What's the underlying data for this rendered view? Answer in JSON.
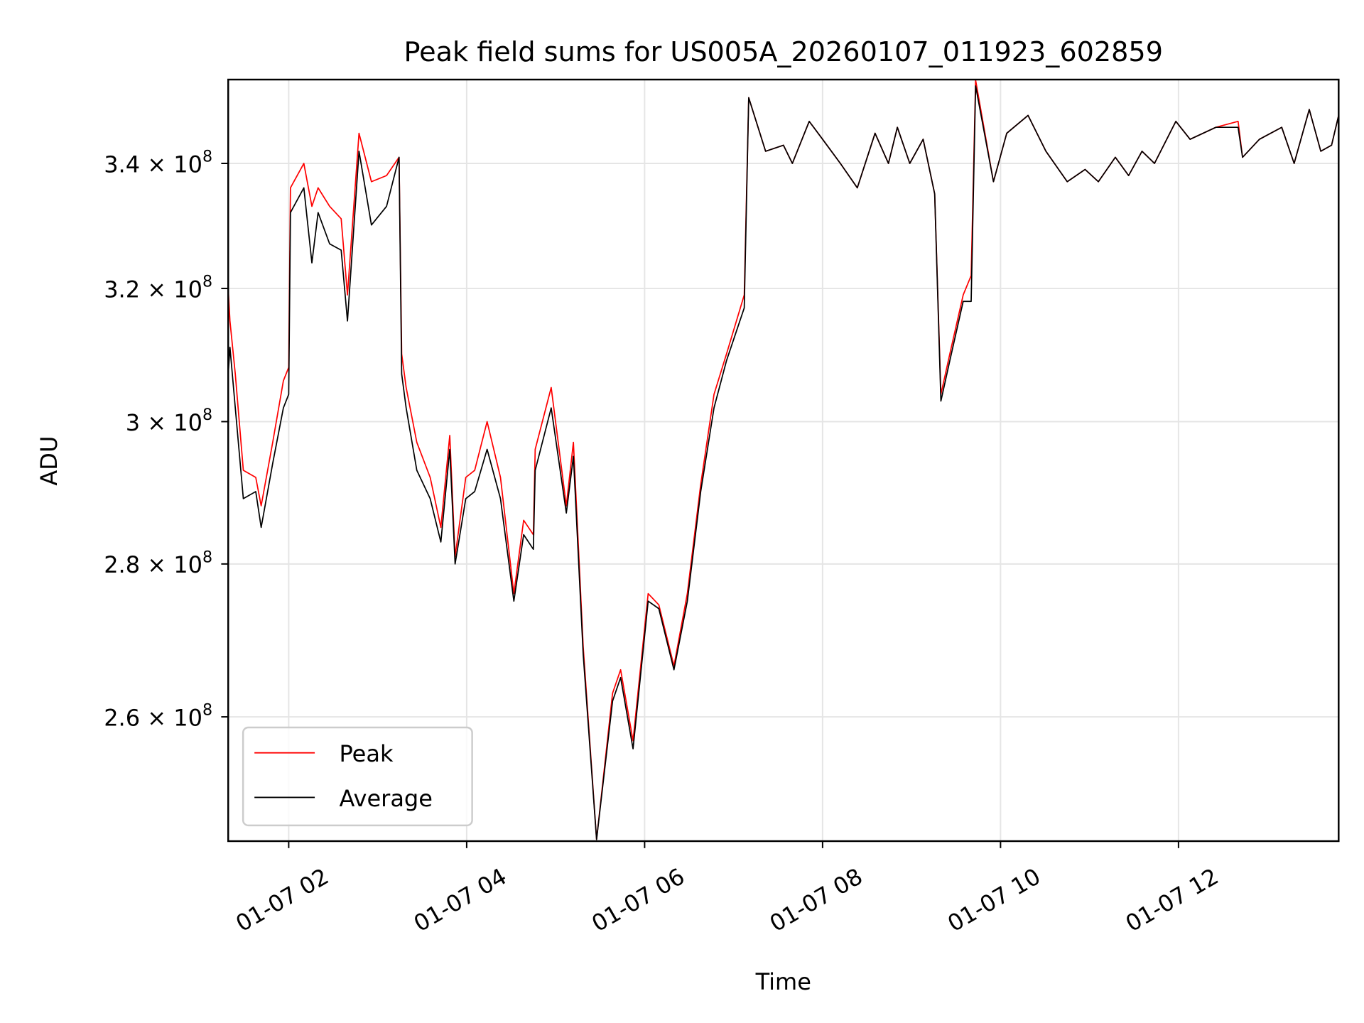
{
  "chart_data": {
    "type": "line",
    "title": "Peak field sums for US005A_20260107_011923_602859",
    "xlabel": "Time",
    "ylabel": "ADU",
    "yscale": "log",
    "x_units": "hours on 01-07",
    "xlim": [
      1.32,
      13.8
    ],
    "ylim": [
      244800000.0,
      354100000.0
    ],
    "grid": true,
    "legend_placement": "lower-left",
    "x_ticks": [
      {
        "value": 2,
        "label": "01-07 02"
      },
      {
        "value": 4,
        "label": "01-07 04"
      },
      {
        "value": 6,
        "label": "01-07 06"
      },
      {
        "value": 8,
        "label": "01-07 08"
      },
      {
        "value": 10,
        "label": "01-07 10"
      },
      {
        "value": 12,
        "label": "01-07 12"
      }
    ],
    "y_ticks": [
      {
        "value": 340000000.0,
        "mantissa": "3.4",
        "base": "10",
        "exp": "8"
      },
      {
        "value": 320000000.0,
        "mantissa": "3.2",
        "base": "10",
        "exp": "8"
      },
      {
        "value": 300000000.0,
        "mantissa": "3",
        "base": "10",
        "exp": "8"
      },
      {
        "value": 280000000.0,
        "mantissa": "2.8",
        "base": "10",
        "exp": "8"
      },
      {
        "value": 260000000.0,
        "mantissa": "2.6",
        "base": "10",
        "exp": "8"
      }
    ],
    "series": [
      {
        "name": "Peak",
        "color": "#ff0000",
        "points_e8": [
          [
            1.32,
            3.2
          ],
          [
            1.34,
            3.15
          ],
          [
            1.4,
            3.07
          ],
          [
            1.49,
            2.93
          ],
          [
            1.63,
            2.92
          ],
          [
            1.69,
            2.88
          ],
          [
            1.82,
            2.97
          ],
          [
            1.94,
            3.06
          ],
          [
            2.0,
            3.08
          ],
          [
            2.02,
            3.36
          ],
          [
            2.17,
            3.4
          ],
          [
            2.26,
            3.33
          ],
          [
            2.33,
            3.36
          ],
          [
            2.46,
            3.33
          ],
          [
            2.59,
            3.31
          ],
          [
            2.66,
            3.19
          ],
          [
            2.79,
            3.45
          ],
          [
            2.93,
            3.37
          ],
          [
            3.1,
            3.38
          ],
          [
            3.24,
            3.41
          ],
          [
            3.27,
            3.1
          ],
          [
            3.32,
            3.05
          ],
          [
            3.44,
            2.97
          ],
          [
            3.59,
            2.92
          ],
          [
            3.71,
            2.85
          ],
          [
            3.81,
            2.98
          ],
          [
            3.87,
            2.81
          ],
          [
            3.99,
            2.92
          ],
          [
            4.09,
            2.93
          ],
          [
            4.23,
            3.0
          ],
          [
            4.38,
            2.92
          ],
          [
            4.53,
            2.76
          ],
          [
            4.64,
            2.86
          ],
          [
            4.75,
            2.84
          ],
          [
            4.77,
            2.96
          ],
          [
            4.95,
            3.05
          ],
          [
            5.12,
            2.88
          ],
          [
            5.2,
            2.97
          ],
          [
            5.31,
            2.69
          ],
          [
            5.46,
            2.45
          ],
          [
            5.64,
            2.63
          ],
          [
            5.73,
            2.66
          ],
          [
            5.87,
            2.57
          ],
          [
            6.04,
            2.76
          ],
          [
            6.16,
            2.745
          ],
          [
            6.33,
            2.665
          ],
          [
            6.48,
            2.76
          ],
          [
            6.63,
            2.91
          ],
          [
            6.78,
            3.04
          ],
          [
            6.92,
            3.1
          ],
          [
            7.12,
            3.19
          ],
          [
            7.17,
            3.51
          ],
          [
            7.36,
            3.42
          ],
          [
            7.56,
            3.43
          ],
          [
            7.66,
            3.4
          ],
          [
            7.85,
            3.47
          ],
          [
            8.0,
            3.44
          ],
          [
            8.2,
            3.4
          ],
          [
            8.39,
            3.36
          ],
          [
            8.59,
            3.45
          ],
          [
            8.74,
            3.4
          ],
          [
            8.84,
            3.46
          ],
          [
            8.98,
            3.4
          ],
          [
            9.13,
            3.44
          ],
          [
            9.26,
            3.35
          ],
          [
            9.33,
            3.04
          ],
          [
            9.43,
            3.1
          ],
          [
            9.58,
            3.19
          ],
          [
            9.67,
            3.22
          ],
          [
            9.72,
            3.54
          ],
          [
            9.92,
            3.37
          ],
          [
            10.07,
            3.45
          ],
          [
            10.31,
            3.48
          ],
          [
            10.51,
            3.42
          ],
          [
            10.75,
            3.37
          ],
          [
            10.95,
            3.39
          ],
          [
            11.1,
            3.37
          ],
          [
            11.29,
            3.41
          ],
          [
            11.44,
            3.38
          ],
          [
            11.59,
            3.42
          ],
          [
            11.73,
            3.4
          ],
          [
            11.97,
            3.47
          ],
          [
            12.13,
            3.44
          ],
          [
            12.42,
            3.46
          ],
          [
            12.67,
            3.47
          ],
          [
            12.72,
            3.41
          ],
          [
            12.91,
            3.44
          ],
          [
            13.16,
            3.46
          ],
          [
            13.3,
            3.4
          ],
          [
            13.47,
            3.49
          ],
          [
            13.6,
            3.42
          ],
          [
            13.72,
            3.43
          ],
          [
            13.8,
            3.48
          ]
        ]
      },
      {
        "name": "Average",
        "color": "#000000",
        "points_e8": [
          [
            1.32,
            3.07
          ],
          [
            1.34,
            3.11
          ],
          [
            1.4,
            3.02
          ],
          [
            1.49,
            2.89
          ],
          [
            1.63,
            2.9
          ],
          [
            1.69,
            2.85
          ],
          [
            1.82,
            2.94
          ],
          [
            1.94,
            3.02
          ],
          [
            2.0,
            3.04
          ],
          [
            2.02,
            3.32
          ],
          [
            2.17,
            3.36
          ],
          [
            2.26,
            3.24
          ],
          [
            2.33,
            3.32
          ],
          [
            2.46,
            3.27
          ],
          [
            2.59,
            3.26
          ],
          [
            2.66,
            3.15
          ],
          [
            2.79,
            3.42
          ],
          [
            2.93,
            3.3
          ],
          [
            3.1,
            3.33
          ],
          [
            3.24,
            3.41
          ],
          [
            3.27,
            3.07
          ],
          [
            3.32,
            3.02
          ],
          [
            3.44,
            2.93
          ],
          [
            3.59,
            2.89
          ],
          [
            3.71,
            2.83
          ],
          [
            3.81,
            2.96
          ],
          [
            3.87,
            2.8
          ],
          [
            3.99,
            2.89
          ],
          [
            4.09,
            2.9
          ],
          [
            4.23,
            2.96
          ],
          [
            4.38,
            2.89
          ],
          [
            4.53,
            2.75
          ],
          [
            4.64,
            2.84
          ],
          [
            4.75,
            2.82
          ],
          [
            4.77,
            2.93
          ],
          [
            4.95,
            3.02
          ],
          [
            5.12,
            2.87
          ],
          [
            5.2,
            2.95
          ],
          [
            5.31,
            2.68
          ],
          [
            5.46,
            2.45
          ],
          [
            5.64,
            2.62
          ],
          [
            5.73,
            2.65
          ],
          [
            5.87,
            2.56
          ],
          [
            6.04,
            2.75
          ],
          [
            6.16,
            2.74
          ],
          [
            6.33,
            2.66
          ],
          [
            6.48,
            2.75
          ],
          [
            6.63,
            2.9
          ],
          [
            6.78,
            3.02
          ],
          [
            6.92,
            3.09
          ],
          [
            7.12,
            3.17
          ],
          [
            7.17,
            3.51
          ],
          [
            7.36,
            3.42
          ],
          [
            7.56,
            3.43
          ],
          [
            7.66,
            3.4
          ],
          [
            7.85,
            3.47
          ],
          [
            8.0,
            3.44
          ],
          [
            8.2,
            3.4
          ],
          [
            8.39,
            3.36
          ],
          [
            8.59,
            3.45
          ],
          [
            8.74,
            3.4
          ],
          [
            8.84,
            3.46
          ],
          [
            8.98,
            3.4
          ],
          [
            9.13,
            3.44
          ],
          [
            9.26,
            3.35
          ],
          [
            9.33,
            3.03
          ],
          [
            9.43,
            3.09
          ],
          [
            9.58,
            3.18
          ],
          [
            9.67,
            3.18
          ],
          [
            9.72,
            3.53
          ],
          [
            9.92,
            3.37
          ],
          [
            10.07,
            3.45
          ],
          [
            10.31,
            3.48
          ],
          [
            10.51,
            3.42
          ],
          [
            10.75,
            3.37
          ],
          [
            10.95,
            3.39
          ],
          [
            11.1,
            3.37
          ],
          [
            11.29,
            3.41
          ],
          [
            11.44,
            3.38
          ],
          [
            11.59,
            3.42
          ],
          [
            11.73,
            3.4
          ],
          [
            11.97,
            3.47
          ],
          [
            12.13,
            3.44
          ],
          [
            12.42,
            3.46
          ],
          [
            12.67,
            3.46
          ],
          [
            12.72,
            3.41
          ],
          [
            12.91,
            3.44
          ],
          [
            13.16,
            3.46
          ],
          [
            13.3,
            3.4
          ],
          [
            13.47,
            3.49
          ],
          [
            13.6,
            3.42
          ],
          [
            13.72,
            3.43
          ],
          [
            13.8,
            3.48
          ]
        ]
      }
    ]
  }
}
